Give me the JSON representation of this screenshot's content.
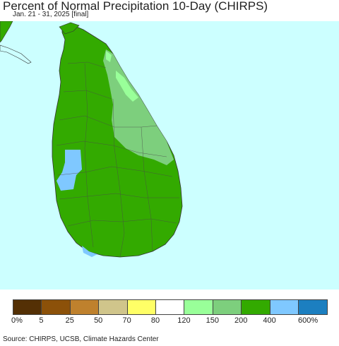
{
  "title": "Percent of Normal Precipitation 10-Day (CHIRPS)",
  "subtitle": "Jan. 21 - 31, 2025 [final]",
  "source": "Source: CHIRPS, UCSB, Climate Hazards Center",
  "map": {
    "region": "Sri Lanka",
    "ocean_color": "#ccffff",
    "dominant_category": "200-400%",
    "dominant_color": "#33aa00"
  },
  "legend": {
    "colors": [
      "#543005",
      "#8c5109",
      "#bf812d",
      "#d0c58b",
      "#ffff66",
      "#ffffff",
      "#99ff99",
      "#7dcf7d",
      "#33aa00",
      "#7fc8ff",
      "#1c7fc0"
    ],
    "ticks": [
      "0%",
      "5",
      "25",
      "50",
      "70",
      "80",
      "120",
      "150",
      "200",
      "400",
      "600%"
    ]
  }
}
